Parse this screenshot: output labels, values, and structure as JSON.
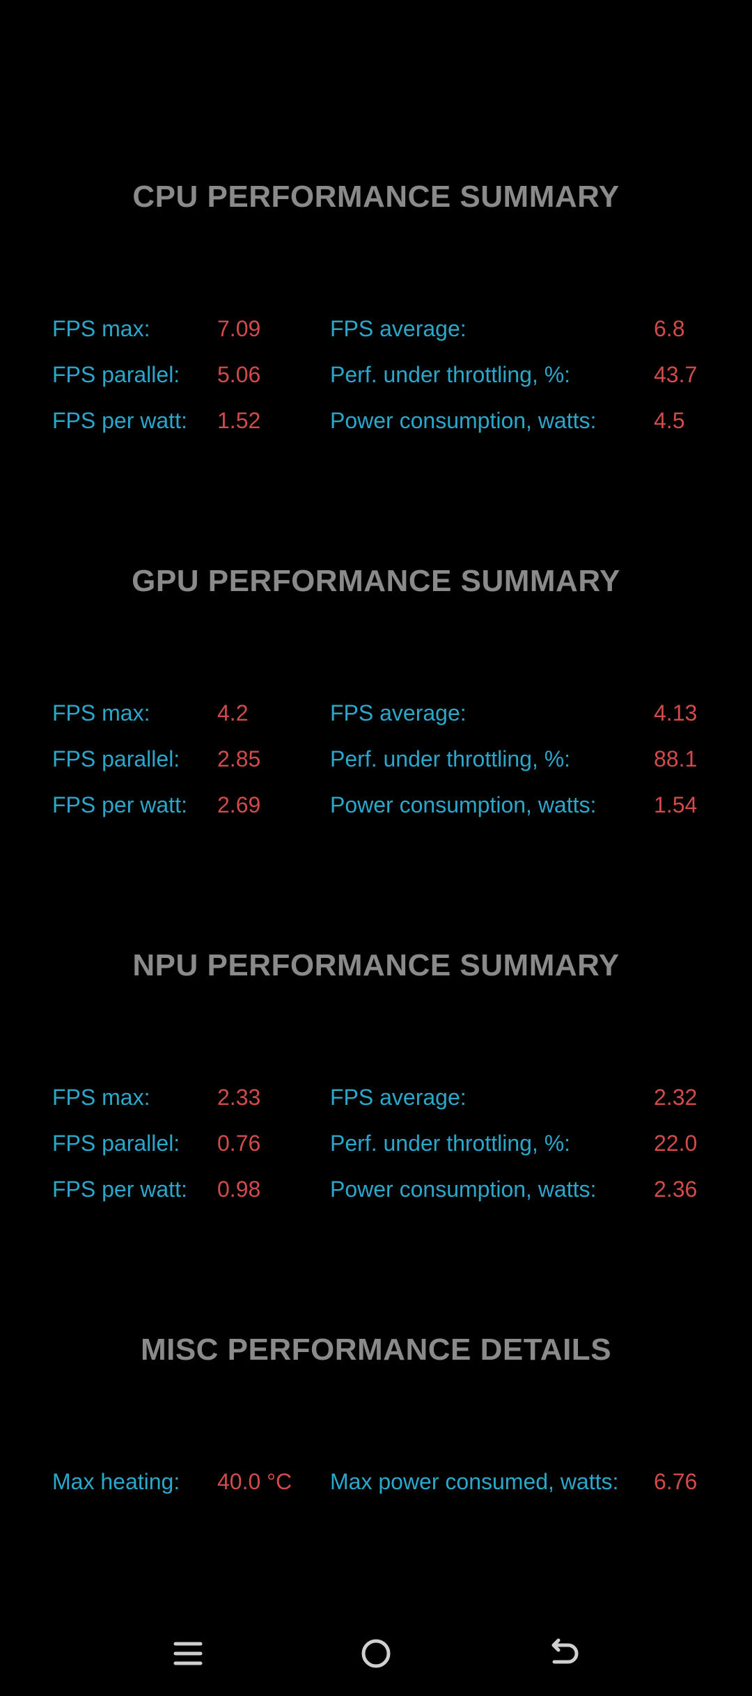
{
  "sections": [
    {
      "title": "CPU PERFORMANCE SUMMARY",
      "rows": [
        {
          "label_left": "FPS max:",
          "value_left": "7.09",
          "label_right": "FPS average:",
          "value_right": "6.8"
        },
        {
          "label_left": "FPS parallel:",
          "value_left": "5.06",
          "label_right": "Perf. under throttling, %:",
          "value_right": "43.7"
        },
        {
          "label_left": "FPS per watt:",
          "value_left": "1.52",
          "label_right": "Power consumption, watts:",
          "value_right": "4.5"
        }
      ]
    },
    {
      "title": "GPU PERFORMANCE SUMMARY",
      "rows": [
        {
          "label_left": "FPS max:",
          "value_left": "4.2",
          "label_right": "FPS average:",
          "value_right": "4.13"
        },
        {
          "label_left": "FPS parallel:",
          "value_left": "2.85",
          "label_right": "Perf. under throttling, %:",
          "value_right": "88.1"
        },
        {
          "label_left": "FPS per watt:",
          "value_left": "2.69",
          "label_right": "Power consumption, watts:",
          "value_right": "1.54"
        }
      ]
    },
    {
      "title": "NPU PERFORMANCE SUMMARY",
      "rows": [
        {
          "label_left": "FPS max:",
          "value_left": "2.33",
          "label_right": "FPS average:",
          "value_right": "2.32"
        },
        {
          "label_left": "FPS parallel:",
          "value_left": "0.76",
          "label_right": "Perf. under throttling, %:",
          "value_right": "22.0"
        },
        {
          "label_left": "FPS per watt:",
          "value_left": "0.98",
          "label_right": "Power consumption, watts:",
          "value_right": "2.36"
        }
      ]
    },
    {
      "title": "MISC PERFORMANCE DETAILS",
      "rows": [
        {
          "label_left": "Max heating:",
          "value_left": "40.0 °C",
          "label_right": "Max power consumed, watts:",
          "value_right": "6.76"
        }
      ]
    }
  ],
  "colors": {
    "background": "#000000",
    "title": "#8a8a8a",
    "label": "#2aa8cc",
    "value": "#d24a4a",
    "nav_icon": "#cfcfcf"
  },
  "navbar": {
    "icons": [
      "menu-icon",
      "home-icon",
      "back-icon"
    ]
  }
}
